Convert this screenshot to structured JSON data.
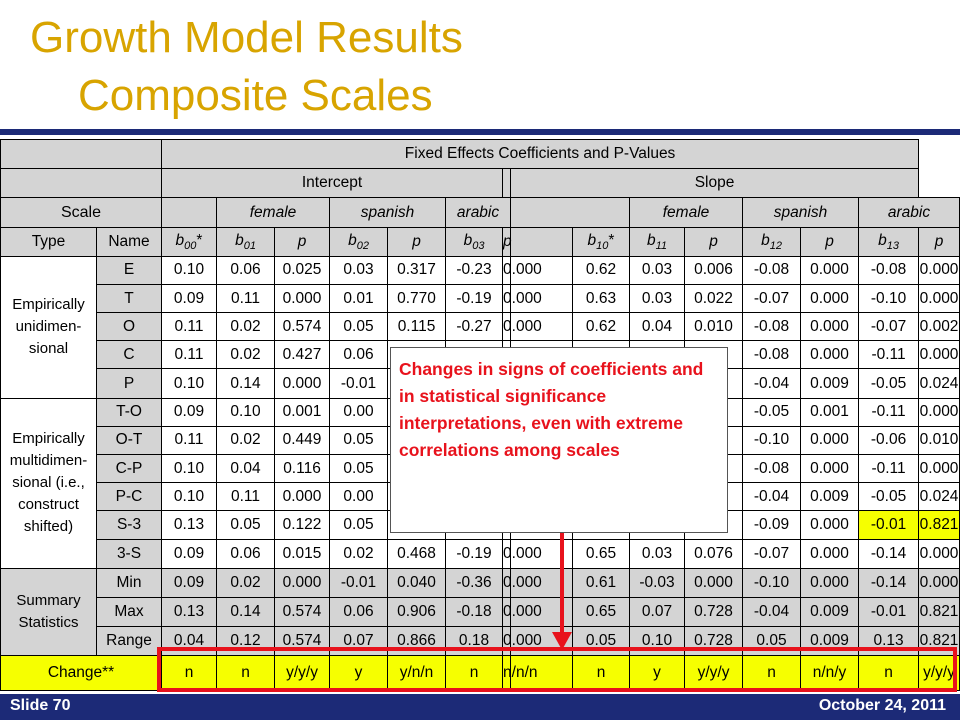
{
  "slide": {
    "title_line1": "Growth Model Results",
    "title_line2": "Composite Scales",
    "footer_left": "Slide 70",
    "footer_right": "October 24, 2011",
    "colors": {
      "title": "#d8a400",
      "bar": "#1c2a77",
      "highlight": "#f6ff00",
      "callout_text": "#e8121c"
    }
  },
  "callout": {
    "text": "Changes in signs of coefficients and in statistical significance interpretations, even with extreme correlations among scales"
  },
  "table": {
    "header": {
      "main": "Fixed Effects Coefficients and P-Values",
      "scale": "Scale",
      "intercept": "Intercept",
      "slope": "Slope",
      "female": "female",
      "spanish": "spanish",
      "arabic": "arabic",
      "type": "Type",
      "name": "Name",
      "sym": {
        "b00": {
          "b": "b",
          "sub": "00",
          "star": "*"
        },
        "b01": {
          "b": "b",
          "sub": "01"
        },
        "b02": {
          "b": "b",
          "sub": "02"
        },
        "b03": {
          "b": "b",
          "sub": "03"
        },
        "b10": {
          "b": "b",
          "sub": "10",
          "star": "*"
        },
        "b11": {
          "b": "b",
          "sub": "11"
        },
        "b12": {
          "b": "b",
          "sub": "12"
        },
        "b13": {
          "b": "b",
          "sub": "13"
        },
        "p": "p"
      }
    },
    "groups": [
      {
        "label": "Empirically unidimen- sional",
        "rows": [
          {
            "name": "E",
            "values": [
              "0.10",
              "0.06",
              "0.025",
              "0.03",
              "0.317",
              "-0.23",
              "0.000",
              "0.62",
              "0.03",
              "0.006",
              "-0.08",
              "0.000",
              "-0.08",
              "0.000"
            ]
          },
          {
            "name": "T",
            "values": [
              "0.09",
              "0.11",
              "0.000",
              "0.01",
              "0.770",
              "-0.19",
              "0.000",
              "0.63",
              "0.03",
              "0.022",
              "-0.07",
              "0.000",
              "-0.10",
              "0.000"
            ]
          },
          {
            "name": "O",
            "values": [
              "0.11",
              "0.02",
              "0.574",
              "0.05",
              "0.115",
              "-0.27",
              "0.000",
              "0.62",
              "0.04",
              "0.010",
              "-0.08",
              "0.000",
              "-0.07",
              "0.002"
            ]
          },
          {
            "name": "C",
            "values": [
              "0.11",
              "0.02",
              "0.427",
              "0.06",
              "",
              "",
              "",
              "",
              "",
              "",
              "-0.08",
              "0.000",
              "-0.11",
              "0.000"
            ]
          },
          {
            "name": "P",
            "values": [
              "0.10",
              "0.14",
              "0.000",
              "-0.01",
              "",
              "",
              "",
              "",
              "",
              "",
              "-0.04",
              "0.009",
              "-0.05",
              "0.024"
            ]
          }
        ]
      },
      {
        "label": "Empirically multidimen- sional (i.e., construct shifted)",
        "rows": [
          {
            "name": "T-O",
            "values": [
              "0.09",
              "0.10",
              "0.001",
              "0.00",
              "",
              "",
              "",
              "",
              "",
              "",
              "-0.05",
              "0.001",
              "-0.11",
              "0.000"
            ]
          },
          {
            "name": "O-T",
            "values": [
              "0.11",
              "0.02",
              "0.449",
              "0.05",
              "",
              "",
              "",
              "",
              "",
              "",
              "-0.10",
              "0.000",
              "-0.06",
              "0.010"
            ]
          },
          {
            "name": "C-P",
            "values": [
              "0.10",
              "0.04",
              "0.116",
              "0.05",
              "",
              "",
              "",
              "",
              "",
              "",
              "-0.08",
              "0.000",
              "-0.11",
              "0.000"
            ]
          },
          {
            "name": "P-C",
            "values": [
              "0.10",
              "0.11",
              "0.000",
              "0.00",
              "",
              "",
              "",
              "",
              "",
              "",
              "-0.04",
              "0.009",
              "-0.05",
              "0.024"
            ]
          },
          {
            "name": "S-3",
            "values": [
              "0.13",
              "0.05",
              "0.122",
              "0.05",
              "",
              "",
              "",
              "",
              "",
              "",
              "-0.09",
              "0.000",
              "-0.01",
              "0.821"
            ]
          },
          {
            "name": "3-S",
            "values": [
              "0.09",
              "0.06",
              "0.015",
              "0.02",
              "0.468",
              "-0.19",
              "0.000",
              "0.65",
              "0.03",
              "0.076",
              "-0.07",
              "0.000",
              "-0.14",
              "0.000"
            ]
          }
        ]
      },
      {
        "label": "Summary Statistics",
        "rows": [
          {
            "name": "Min",
            "values": [
              "0.09",
              "0.02",
              "0.000",
              "-0.01",
              "0.040",
              "-0.36",
              "0.000",
              "0.61",
              "-0.03",
              "0.000",
              "-0.10",
              "0.000",
              "-0.14",
              "0.000"
            ]
          },
          {
            "name": "Max",
            "values": [
              "0.13",
              "0.14",
              "0.574",
              "0.06",
              "0.906",
              "-0.18",
              "0.000",
              "0.65",
              "0.07",
              "0.728",
              "-0.04",
              "0.009",
              "-0.01",
              "0.821"
            ]
          },
          {
            "name": "Range",
            "values": [
              "0.04",
              "0.12",
              "0.574",
              "0.07",
              "0.866",
              "0.18",
              "0.000",
              "0.05",
              "0.10",
              "0.728",
              "0.05",
              "0.009",
              "0.13",
              "0.821"
            ]
          }
        ]
      }
    ],
    "change": {
      "label": "Change**",
      "values": [
        "n",
        "n",
        "y/y/y",
        "y",
        "y/n/n",
        "n",
        "n/n/n",
        "n",
        "y",
        "y/y/y",
        "n",
        "n/n/y",
        "n",
        "y/y/y"
      ]
    }
  }
}
